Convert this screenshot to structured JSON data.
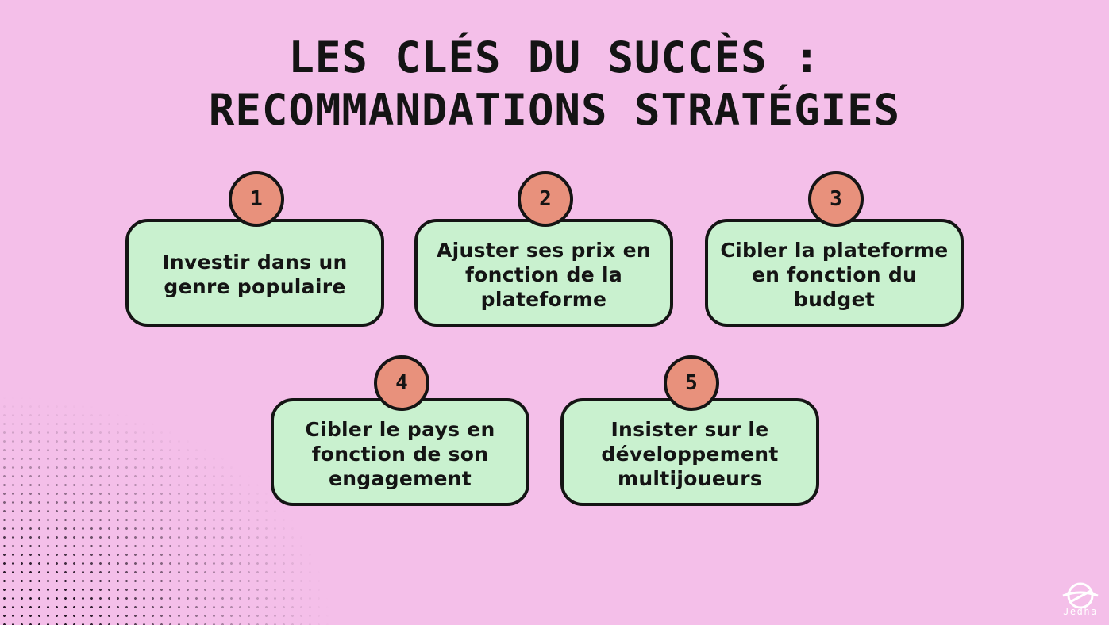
{
  "title": {
    "line1": "LES CLÉS DU SUCCÈS :",
    "line2": "RECOMMANDATIONS STRATÉGIES"
  },
  "steps": [
    {
      "number": "1",
      "text": "Investir dans un genre populaire"
    },
    {
      "number": "2",
      "text": "Ajuster ses prix en fonction de la plateforme"
    },
    {
      "number": "3",
      "text": "Cibler la plateforme en fonction du budget"
    },
    {
      "number": "4",
      "text": "Cibler le pays en fonction de son engagement"
    },
    {
      "number": "5",
      "text": "Insister sur le développement multijoueurs"
    }
  ],
  "brand": {
    "name": "Jedha",
    "icon": "jedha-logo-icon"
  },
  "colors": {
    "background": "#f4bfe9",
    "card": "#c9f1cf",
    "badge": "#e8917c",
    "outline": "#141414"
  }
}
